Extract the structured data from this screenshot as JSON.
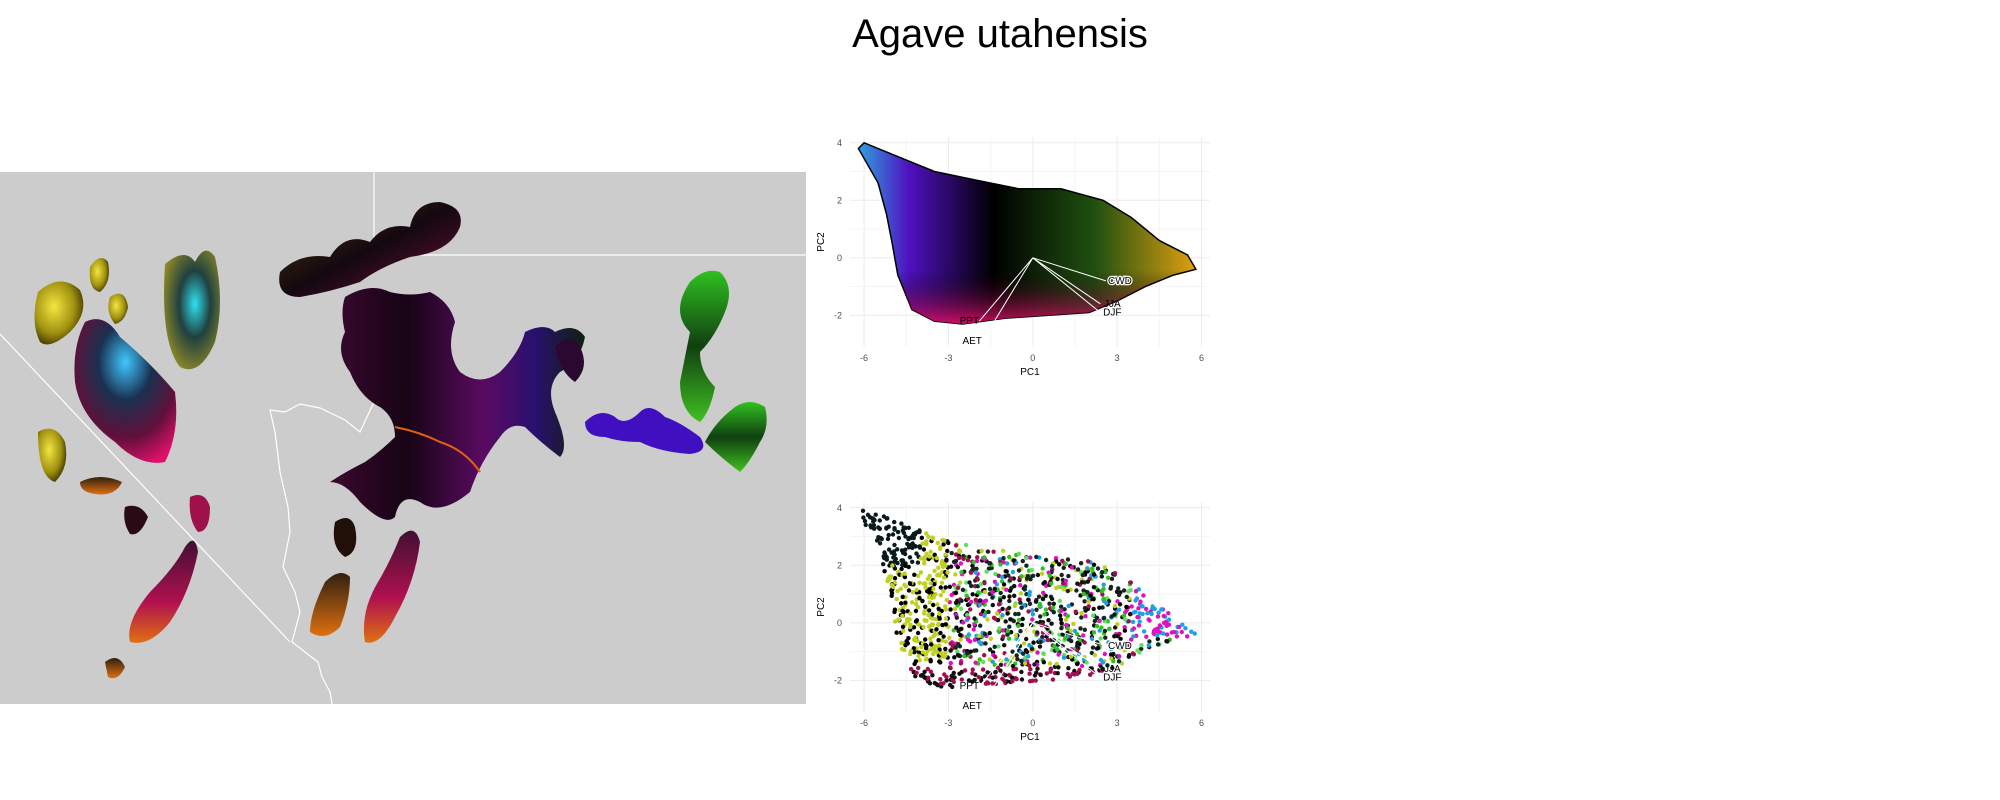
{
  "title": "Agave utahensis",
  "colors": {
    "map_background": "#cccccc",
    "borders": "#ffffff",
    "grid": "#ebebeb",
    "hull": "#000000",
    "loading_lines": "#ffffff"
  },
  "map": {
    "borders": "state boundaries and river outline in white",
    "patch_palette": [
      "#0a0a0a",
      "#3a0a30",
      "#c0106a",
      "#e0d020",
      "#20c0e0",
      "#30c020",
      "#d07010",
      "#6a10c0"
    ]
  },
  "chart_data": [
    {
      "type": "scatter",
      "name": "pca-top",
      "description_of_fill": "continuous color field inside convex hull",
      "xlabel": "PC1",
      "ylabel": "PC2",
      "xlim": [
        -6.5,
        6.3
      ],
      "ylim": [
        -3.1,
        4.2
      ],
      "x_ticks": [
        -6,
        -3,
        0,
        3,
        6
      ],
      "y_ticks": [
        4,
        2,
        0,
        -2
      ],
      "grid": true,
      "loadings": [
        {
          "label": "CWD",
          "x": 2.6,
          "y": -0.8
        },
        {
          "label": "JJA",
          "x": 2.4,
          "y": -1.6
        },
        {
          "label": "DJF",
          "x": 2.4,
          "y": -1.9
        },
        {
          "label": "PPT",
          "x": -1.9,
          "y": -2.2
        },
        {
          "label": "AET",
          "x": -1.8,
          "y": -2.9
        }
      ]
    },
    {
      "type": "scatter",
      "name": "pca-bottom",
      "xlabel": "PC1",
      "ylabel": "PC2",
      "xlim": [
        -6.5,
        6.3
      ],
      "ylim": [
        -3.1,
        4.2
      ],
      "x_ticks": [
        -6,
        -3,
        0,
        3,
        6
      ],
      "y_ticks": [
        4,
        2,
        0,
        -2
      ],
      "grid": true,
      "loadings": [
        {
          "label": "CWD",
          "x": 2.6,
          "y": -0.8
        },
        {
          "label": "JJA",
          "x": 2.4,
          "y": -1.6
        },
        {
          "label": "DJF",
          "x": 2.4,
          "y": -1.9
        },
        {
          "label": "PPT",
          "x": -1.9,
          "y": -2.2
        },
        {
          "label": "AET",
          "x": -1.8,
          "y": -2.9
        }
      ]
    }
  ]
}
